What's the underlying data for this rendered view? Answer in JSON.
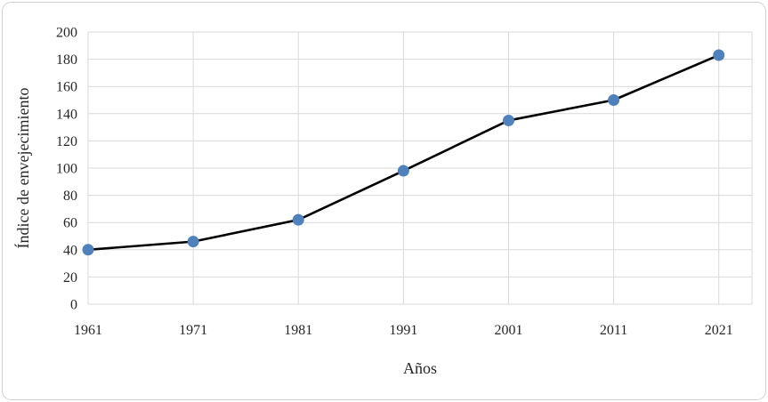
{
  "chart_data": {
    "type": "line",
    "title": "",
    "xlabel": "Años",
    "ylabel": "Índice de envejecimiento",
    "x": [
      "1961",
      "1971",
      "1981",
      "1991",
      "2001",
      "2011",
      "2021"
    ],
    "series": [
      {
        "name": "Índice de envejecimiento",
        "values": [
          40,
          46,
          62,
          98,
          135,
          150,
          183
        ]
      }
    ],
    "ylim": [
      0,
      200
    ],
    "ytick_step": 20,
    "ytick_labels": [
      "0",
      "20",
      "40",
      "60",
      "80",
      "100",
      "120",
      "140",
      "160",
      "180",
      "200"
    ],
    "grid": true,
    "legend_position": "none",
    "colors": {
      "line": "#000000",
      "marker": "#4F81BD",
      "grid": "#D9D9D9",
      "frame_border": "#D0D0D0",
      "text": "#262626",
      "background": "#FFFFFF"
    }
  }
}
